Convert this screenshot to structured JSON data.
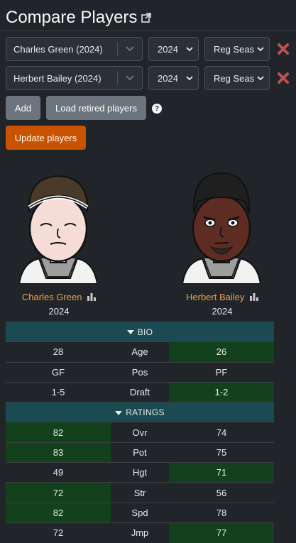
{
  "page": {
    "title": "Compare Players"
  },
  "players": [
    {
      "name": "Charles Green (2024)",
      "season": "2024",
      "type": "Reg Seas"
    },
    {
      "name": "Herbert Bailey (2024)",
      "season": "2024",
      "type": "Reg Seas"
    }
  ],
  "buttons": {
    "add": "Add",
    "load_retired": "Load retired players",
    "help": "?",
    "update": "Update players"
  },
  "cards": [
    {
      "name": "Charles Green",
      "season": "2024"
    },
    {
      "name": "Herbert Bailey",
      "season": "2024"
    }
  ],
  "sections": {
    "bio": "BIO",
    "ratings": "RATINGS"
  },
  "bio_rows": [
    {
      "label": "Age",
      "p1": "28",
      "p2": "26",
      "winner": 2
    },
    {
      "label": "Pos",
      "p1": "GF",
      "p2": "PF",
      "winner": 0
    },
    {
      "label": "Draft",
      "p1": "1-5",
      "p2": "1-2",
      "winner": 2
    }
  ],
  "rating_rows": [
    {
      "label": "Ovr",
      "p1": "82",
      "p2": "74",
      "winner": 1
    },
    {
      "label": "Pot",
      "p1": "83",
      "p2": "75",
      "winner": 1
    },
    {
      "label": "Hgt",
      "p1": "49",
      "p2": "71",
      "winner": 2
    },
    {
      "label": "Str",
      "p1": "72",
      "p2": "56",
      "winner": 1
    },
    {
      "label": "Spd",
      "p1": "82",
      "p2": "78",
      "winner": 1
    },
    {
      "label": "Jmp",
      "p1": "72",
      "p2": "77",
      "winner": 2
    }
  ],
  "colors": {
    "background": "#212529",
    "accent_orange": "#c95300",
    "player_link": "#f0a04a",
    "section_header": "#1c4a52",
    "winner_cell": "#12411c",
    "remove_x": "#c0504d"
  }
}
